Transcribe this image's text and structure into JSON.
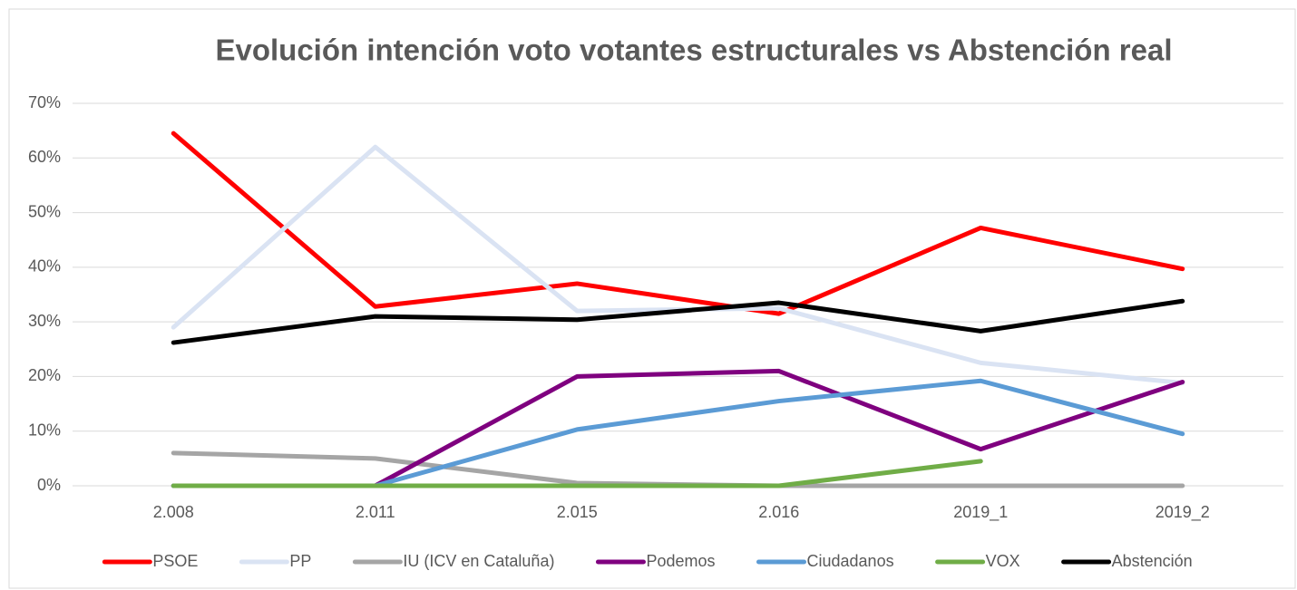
{
  "chart_data": {
    "type": "line",
    "title": "Evolución intención voto votantes estructurales vs Abstención real",
    "categories": [
      "2.008",
      "2.011",
      "2.015",
      "2.016",
      "2019_1",
      "2019_2"
    ],
    "series": [
      {
        "name": "PSOE",
        "color": "#ff0000",
        "values": [
          64.5,
          32.8,
          37,
          31.5,
          47.2,
          39.7
        ]
      },
      {
        "name": "PP",
        "color": "#dae3f3",
        "values": [
          29,
          62,
          32,
          32.5,
          22.5,
          18.8
        ]
      },
      {
        "name": "IU (ICV en Cataluña)",
        "color": "#a5a5a5",
        "values": [
          6,
          5,
          0.5,
          0,
          0,
          0
        ]
      },
      {
        "name": "Podemos",
        "color": "#7f007f",
        "values": [
          0,
          0,
          20,
          21,
          6.7,
          19
        ]
      },
      {
        "name": "Ciudadanos",
        "color": "#5b9bd5",
        "values": [
          0,
          0,
          10.3,
          15.5,
          19.2,
          9.5
        ]
      },
      {
        "name": "VOX",
        "color": "#70ad47",
        "values": [
          0,
          0,
          0,
          0,
          4.5,
          null
        ]
      },
      {
        "name": "Abstención",
        "color": "#000000",
        "values": [
          26.2,
          31,
          30.4,
          33.5,
          28.3,
          33.8
        ]
      }
    ],
    "ylim": [
      0,
      70
    ],
    "yticks": [
      {
        "value": 0,
        "label": "0%"
      },
      {
        "value": 10,
        "label": "10%"
      },
      {
        "value": 20,
        "label": "20%"
      },
      {
        "value": 30,
        "label": "30%"
      },
      {
        "value": 40,
        "label": "40%"
      },
      {
        "value": 50,
        "label": "50%"
      },
      {
        "value": 60,
        "label": "60%"
      },
      {
        "value": 70,
        "label": "70%"
      }
    ],
    "grid": true,
    "legend": "bottom"
  }
}
